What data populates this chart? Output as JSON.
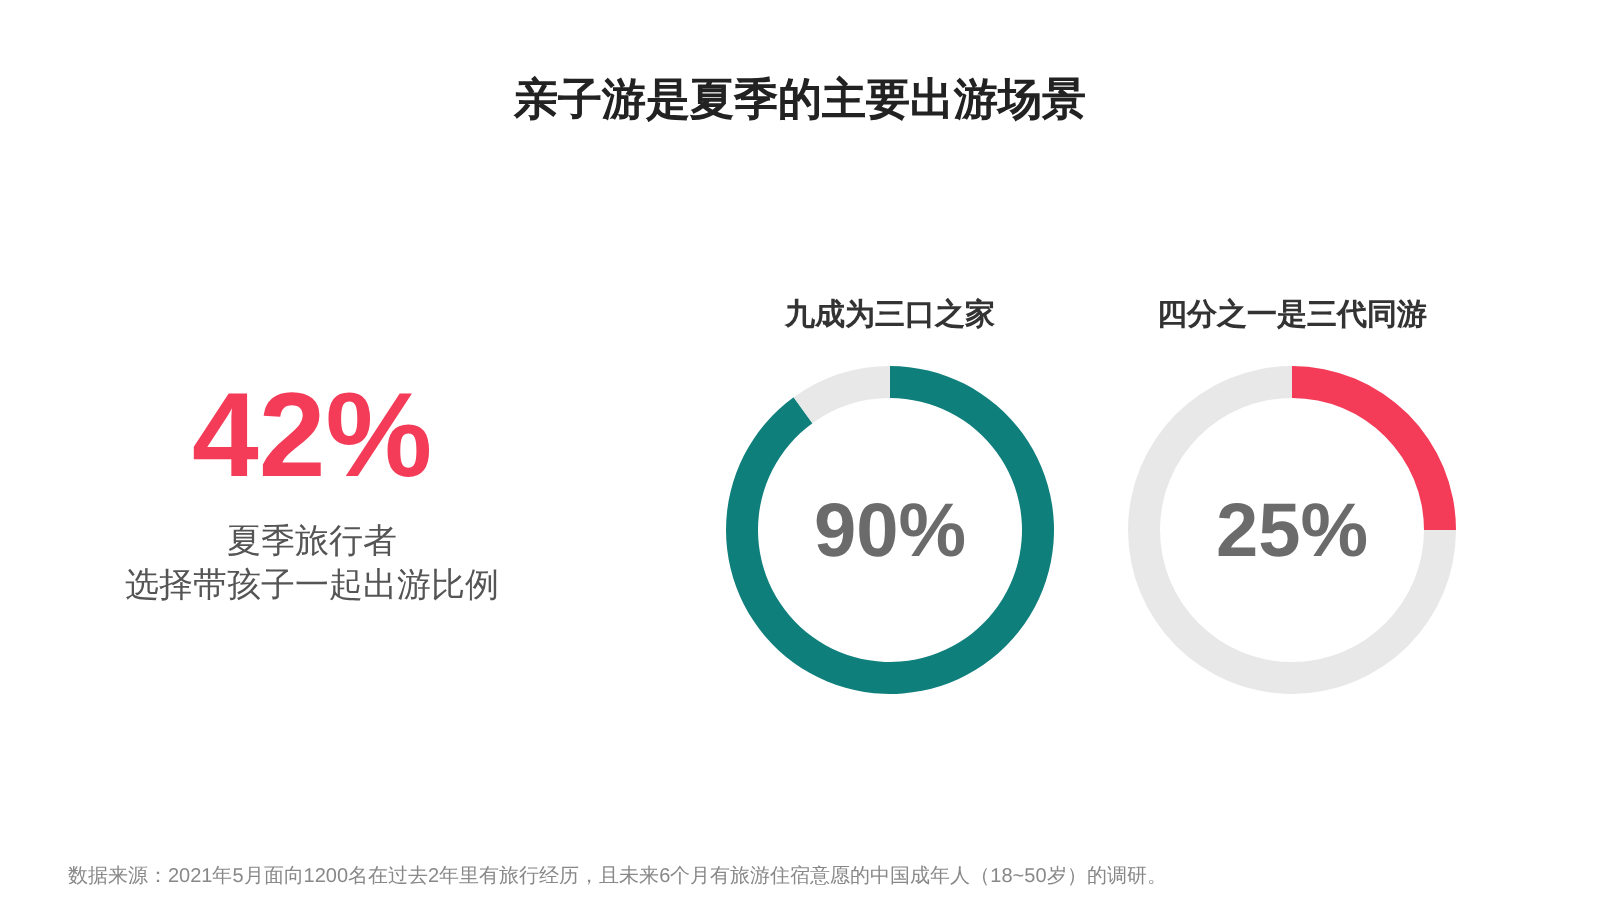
{
  "chart_data": [
    {
      "type": "other",
      "title": "亲子游是夏季的主要出游场景",
      "annotations": [
        "42%",
        "夏季旅行者",
        "选择带孩子一起出游比例",
        "数据来源：2021年5月面向1200名在过去2年里有旅行经历，且未来6个月有旅游住宿意愿的中国成年人（18~50岁）的调研。"
      ]
    },
    {
      "type": "donut",
      "title": "九成为三口之家",
      "categories": [
        null,
        null
      ],
      "values": [
        90,
        10
      ],
      "colors": [
        "#0f7f7c",
        "#e8e8e8"
      ],
      "annotations": [
        "90%"
      ]
    },
    {
      "type": "donut",
      "title": "四分之一是三代同游",
      "categories": [
        null,
        null
      ],
      "values": [
        25,
        75
      ],
      "colors": [
        "#f43b58",
        "#e8e8e8"
      ],
      "annotations": [
        "25%"
      ]
    }
  ]
}
